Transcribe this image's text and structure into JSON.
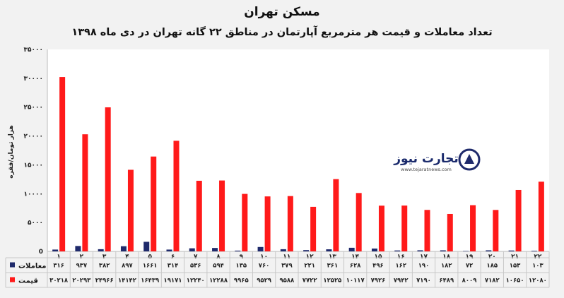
{
  "chart_data": {
    "type": "bar",
    "title": "مسکن تهران",
    "subtitle": "تعداد معاملات و قیمت هر مترمربع آپارتمان در مناطق ۲۲ گانه تهران در دی ماه ۱۳۹۸",
    "ylabel": "هزار تومان/فقره",
    "xlabel": "",
    "ylim": [
      0,
      35000
    ],
    "yticks": [
      0,
      5000,
      10000,
      15000,
      20000,
      25000,
      30000,
      35000
    ],
    "ytick_labels": [
      "0",
      "۵۰۰۰",
      "۱۰۰۰۰",
      "۱۵۰۰۰",
      "۲۰۰۰۰",
      "۲۵۰۰۰",
      "۳۰۰۰۰",
      "۳۵۰۰۰"
    ],
    "grid": false,
    "legend": "bottom-table",
    "categories": [
      "۱",
      "۲",
      "۳",
      "۴",
      "۵",
      "۶",
      "۷",
      "۸",
      "۹",
      "۱۰",
      "۱۱",
      "۱۲",
      "۱۳",
      "۱۴",
      "۱۵",
      "۱۶",
      "۱۷",
      "۱۸",
      "۱۹",
      "۲۰",
      "۲۱",
      "۲۲"
    ],
    "series": [
      {
        "name": "معاملات",
        "color": "#1f2a6b",
        "values": [
          316,
          937,
          382,
          897,
          1661,
          314,
          536,
          594,
          135,
          760,
          379,
          221,
          361,
          628,
          496,
          162,
          190,
          182,
          72,
          185,
          153,
          103
        ],
        "labels": [
          "۳۱۶",
          "۹۳۷",
          "۳۸۲",
          "۸۹۷",
          "۱۶۶۱",
          "۳۱۴",
          "۵۳۶",
          "۵۹۴",
          "۱۳۵",
          "۷۶۰",
          "۳۷۹",
          "۲۲۱",
          "۳۶۱",
          "۶۲۸",
          "۴۹۶",
          "۱۶۲",
          "۱۹۰",
          "۱۸۲",
          "۷۲",
          "۱۸۵",
          "۱۵۳",
          "۱۰۳"
        ]
      },
      {
        "name": "قیمت",
        "color": "#ff1a1a",
        "values": [
          30218,
          20293,
          24966,
          14142,
          16439,
          19171,
          12240,
          12288,
          9965,
          9529,
          9588,
          7722,
          12525,
          10117,
          7926,
          7942,
          7190,
          6489,
          8009,
          7182,
          10650,
          12080
        ],
        "labels": [
          "۳۰۲۱۸",
          "۲۰۲۹۳",
          "۲۴۹۶۶",
          "۱۴۱۴۲",
          "۱۶۴۳۹",
          "۱۹۱۷۱",
          "۱۲۲۴۰",
          "۱۲۲۸۸",
          "۹۹۶۵",
          "۹۵۲۹",
          "۹۵۸۸",
          "۷۷۲۲",
          "۱۲۵۲۵",
          "۱۰۱۱۷",
          "۷۹۲۶",
          "۷۹۴۲",
          "۷۱۹۰",
          "۶۴۸۹",
          "۸۰۰۹",
          "۷۱۸۲",
          "۱۰۶۵۰",
          "۱۲۰۸۰"
        ]
      }
    ]
  },
  "watermark": {
    "name": "تجارت نیوز",
    "url": "www.tejaratnews.com",
    "icon": "tejaratnews-logo-icon"
  }
}
